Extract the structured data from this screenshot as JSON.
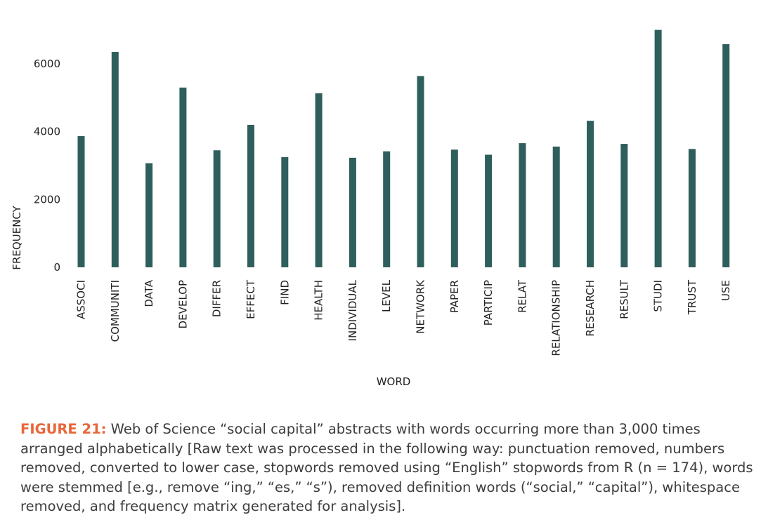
{
  "chart_data": {
    "type": "bar",
    "xlabel": "WORD",
    "ylabel": "FREQUENCY",
    "ylim": [
      0,
      7000
    ],
    "yticks": [
      0,
      2000,
      4000,
      6000
    ],
    "grid": false,
    "bar_color": "#2f5f5c",
    "categories": [
      "ASSOCI",
      "COMMUNITI",
      "DATA",
      "DEVELOP",
      "DIFFER",
      "EFFECT",
      "FIND",
      "HEALTH",
      "INDIVIDUAL",
      "LEVEL",
      "NETWORK",
      "PAPER",
      "PARTICIP",
      "RELAT",
      "RELATIONSHIP",
      "RESEARCH",
      "RESULT",
      "STUDI",
      "TRUST",
      "USE"
    ],
    "values": [
      3870,
      6350,
      3070,
      5300,
      3450,
      4200,
      3250,
      5130,
      3230,
      3420,
      5640,
      3470,
      3320,
      3660,
      3560,
      4320,
      3640,
      7000,
      3490,
      6580
    ]
  },
  "caption": {
    "label": "FIGURE 21:",
    "text": " Web of Science “social capital” abstracts with words occurring more than 3,000 times arranged alphabetically [Raw text was processed in the following way: punctuation removed, numbers removed, converted to lower case, stopwords removed using “English” stopwords from R (n = 174), words were stemmed [e.g., remove “ing,” “es,” “s”), removed definition words (“social,” “capital”), whitespace removed, and frequency matrix generated for analysis]."
  }
}
